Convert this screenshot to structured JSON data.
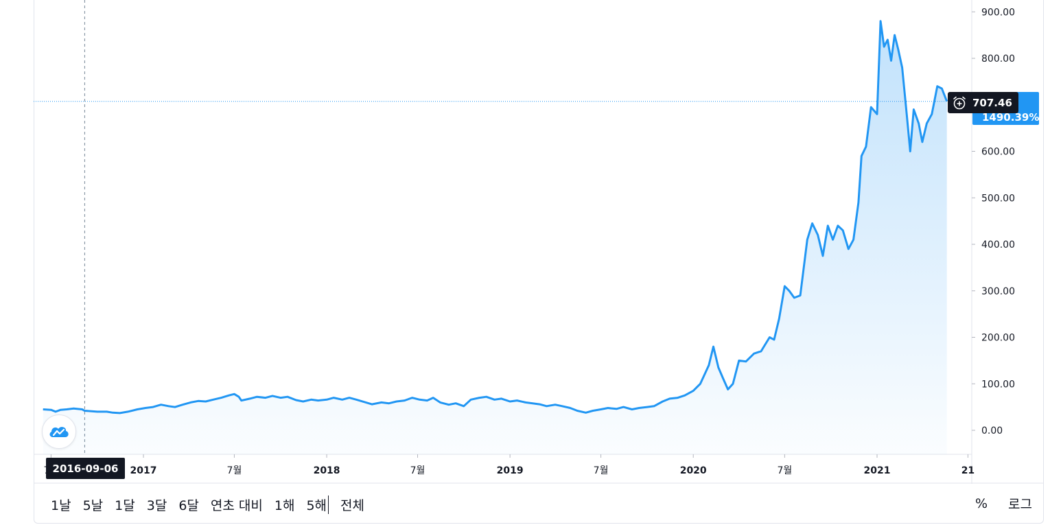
{
  "chart_data": {
    "type": "area",
    "title": "",
    "xlabel": "",
    "ylabel": "",
    "ylim": [
      -50,
      920
    ],
    "y_ticks": [
      "900.00",
      "800.00",
      "700.00",
      "600.00",
      "500.00",
      "400.00",
      "300.00",
      "200.00",
      "100.00",
      "0.00"
    ],
    "x_ticks": [
      {
        "label": "7월",
        "date": "2016-07-01",
        "bold": false
      },
      {
        "label": "2017",
        "date": "2017-01-01",
        "bold": true
      },
      {
        "label": "7월",
        "date": "2017-07-01",
        "bold": false
      },
      {
        "label": "2018",
        "date": "2018-01-01",
        "bold": true
      },
      {
        "label": "7월",
        "date": "2018-07-01",
        "bold": false
      },
      {
        "label": "2019",
        "date": "2019-01-01",
        "bold": true
      },
      {
        "label": "7월",
        "date": "2019-07-01",
        "bold": false
      },
      {
        "label": "2020",
        "date": "2020-01-01",
        "bold": true
      },
      {
        "label": "7월",
        "date": "2020-07-01",
        "bold": false
      },
      {
        "label": "2021",
        "date": "2021-01-01",
        "bold": true
      },
      {
        "label": "21",
        "date": "2021-07-01",
        "bold": true
      }
    ],
    "x_range": [
      "2016-06-15",
      "2021-07-15"
    ],
    "grid": false,
    "series": [
      {
        "color": "#2196f3",
        "points": [
          [
            "2016-06-15",
            45
          ],
          [
            "2016-07-01",
            44
          ],
          [
            "2016-07-10",
            40
          ],
          [
            "2016-07-20",
            44
          ],
          [
            "2016-08-01",
            45
          ],
          [
            "2016-08-15",
            47
          ],
          [
            "2016-09-01",
            45
          ],
          [
            "2016-09-06",
            42
          ],
          [
            "2016-09-20",
            41
          ],
          [
            "2016-10-01",
            40
          ],
          [
            "2016-10-20",
            40
          ],
          [
            "2016-11-01",
            38
          ],
          [
            "2016-11-15",
            37
          ],
          [
            "2016-12-01",
            40
          ],
          [
            "2016-12-20",
            45
          ],
          [
            "2017-01-05",
            48
          ],
          [
            "2017-01-20",
            50
          ],
          [
            "2017-02-05",
            55
          ],
          [
            "2017-02-20",
            52
          ],
          [
            "2017-03-05",
            50
          ],
          [
            "2017-03-20",
            55
          ],
          [
            "2017-04-05",
            60
          ],
          [
            "2017-04-20",
            63
          ],
          [
            "2017-05-05",
            62
          ],
          [
            "2017-05-20",
            66
          ],
          [
            "2017-06-05",
            70
          ],
          [
            "2017-06-20",
            75
          ],
          [
            "2017-07-01",
            78
          ],
          [
            "2017-07-10",
            72
          ],
          [
            "2017-07-15",
            64
          ],
          [
            "2017-08-01",
            68
          ],
          [
            "2017-08-15",
            72
          ],
          [
            "2017-09-01",
            70
          ],
          [
            "2017-09-15",
            74
          ],
          [
            "2017-10-01",
            70
          ],
          [
            "2017-10-15",
            72
          ],
          [
            "2017-11-01",
            65
          ],
          [
            "2017-11-15",
            62
          ],
          [
            "2017-12-01",
            66
          ],
          [
            "2017-12-15",
            64
          ],
          [
            "2018-01-01",
            66
          ],
          [
            "2018-01-15",
            70
          ],
          [
            "2018-02-01",
            66
          ],
          [
            "2018-02-15",
            70
          ],
          [
            "2018-03-01",
            66
          ],
          [
            "2018-03-20",
            60
          ],
          [
            "2018-04-01",
            56
          ],
          [
            "2018-04-20",
            60
          ],
          [
            "2018-05-05",
            58
          ],
          [
            "2018-05-20",
            62
          ],
          [
            "2018-06-05",
            64
          ],
          [
            "2018-06-20",
            70
          ],
          [
            "2018-07-05",
            66
          ],
          [
            "2018-07-20",
            64
          ],
          [
            "2018-08-01",
            70
          ],
          [
            "2018-08-15",
            60
          ],
          [
            "2018-09-01",
            55
          ],
          [
            "2018-09-15",
            58
          ],
          [
            "2018-10-01",
            52
          ],
          [
            "2018-10-15",
            66
          ],
          [
            "2018-11-01",
            70
          ],
          [
            "2018-11-15",
            72
          ],
          [
            "2018-12-01",
            66
          ],
          [
            "2018-12-15",
            68
          ],
          [
            "2019-01-01",
            62
          ],
          [
            "2019-01-15",
            64
          ],
          [
            "2019-02-01",
            60
          ],
          [
            "2019-02-15",
            58
          ],
          [
            "2019-03-01",
            56
          ],
          [
            "2019-03-15",
            52
          ],
          [
            "2019-04-01",
            55
          ],
          [
            "2019-04-15",
            52
          ],
          [
            "2019-05-01",
            48
          ],
          [
            "2019-05-15",
            42
          ],
          [
            "2019-06-01",
            38
          ],
          [
            "2019-06-15",
            42
          ],
          [
            "2019-07-01",
            45
          ],
          [
            "2019-07-15",
            48
          ],
          [
            "2019-08-01",
            46
          ],
          [
            "2019-08-15",
            50
          ],
          [
            "2019-09-01",
            45
          ],
          [
            "2019-09-15",
            48
          ],
          [
            "2019-10-01",
            50
          ],
          [
            "2019-10-15",
            52
          ],
          [
            "2019-11-01",
            62
          ],
          [
            "2019-11-15",
            68
          ],
          [
            "2019-12-01",
            70
          ],
          [
            "2019-12-15",
            75
          ],
          [
            "2020-01-01",
            85
          ],
          [
            "2020-01-15",
            100
          ],
          [
            "2020-02-01",
            140
          ],
          [
            "2020-02-10",
            180
          ],
          [
            "2020-02-20",
            135
          ],
          [
            "2020-03-01",
            110
          ],
          [
            "2020-03-10",
            88
          ],
          [
            "2020-03-20",
            100
          ],
          [
            "2020-04-01",
            150
          ],
          [
            "2020-04-15",
            148
          ],
          [
            "2020-05-01",
            165
          ],
          [
            "2020-05-15",
            170
          ],
          [
            "2020-06-01",
            200
          ],
          [
            "2020-06-10",
            195
          ],
          [
            "2020-06-20",
            240
          ],
          [
            "2020-07-01",
            310
          ],
          [
            "2020-07-10",
            300
          ],
          [
            "2020-07-20",
            285
          ],
          [
            "2020-08-01",
            290
          ],
          [
            "2020-08-15",
            410
          ],
          [
            "2020-08-25",
            445
          ],
          [
            "2020-09-05",
            420
          ],
          [
            "2020-09-15",
            375
          ],
          [
            "2020-09-25",
            440
          ],
          [
            "2020-10-05",
            410
          ],
          [
            "2020-10-15",
            440
          ],
          [
            "2020-10-25",
            430
          ],
          [
            "2020-11-05",
            390
          ],
          [
            "2020-11-15",
            410
          ],
          [
            "2020-11-25",
            490
          ],
          [
            "2020-12-01",
            590
          ],
          [
            "2020-12-10",
            610
          ],
          [
            "2020-12-20",
            695
          ],
          [
            "2021-01-01",
            680
          ],
          [
            "2021-01-08",
            880
          ],
          [
            "2021-01-15",
            825
          ],
          [
            "2021-01-22",
            840
          ],
          [
            "2021-01-29",
            795
          ],
          [
            "2021-02-05",
            850
          ],
          [
            "2021-02-12",
            820
          ],
          [
            "2021-02-20",
            780
          ],
          [
            "2021-03-01",
            680
          ],
          [
            "2021-03-08",
            600
          ],
          [
            "2021-03-15",
            690
          ],
          [
            "2021-03-25",
            660
          ],
          [
            "2021-04-01",
            620
          ],
          [
            "2021-04-10",
            660
          ],
          [
            "2021-04-20",
            680
          ],
          [
            "2021-05-01",
            740
          ],
          [
            "2021-05-10",
            735
          ],
          [
            "2021-05-20",
            707.46
          ]
        ]
      }
    ],
    "last_price": "707.46",
    "last_change_pct": "1490.39%",
    "crosshair_date": "2016-09-06"
  },
  "timeframes": [
    "1날",
    "5날",
    "1달",
    "3달",
    "6달",
    "연초 대비",
    "1해",
    "5해",
    "전체"
  ],
  "options": {
    "percent": "%",
    "log": "로그"
  },
  "colors": {
    "line": "#2196f3",
    "label_bg": "#131722",
    "pct_bg": "#2196f3"
  }
}
